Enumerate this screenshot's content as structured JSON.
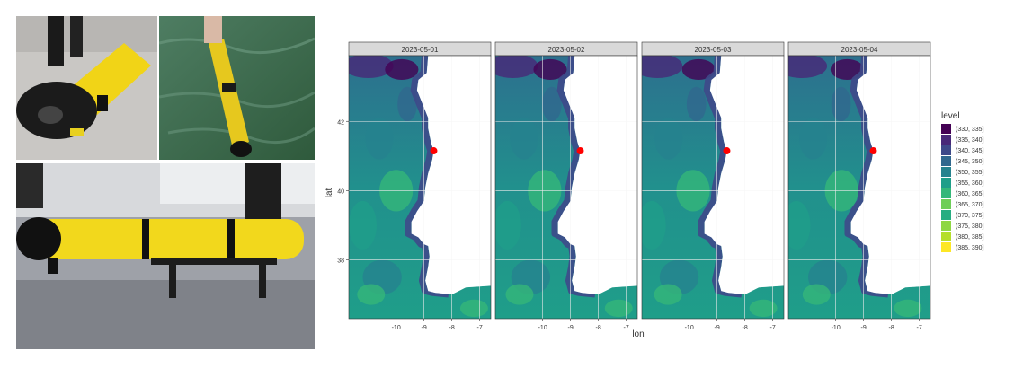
{
  "photos": [
    {
      "name": "glider-on-dock-photo",
      "description_icon": "underwater-glider-nose"
    },
    {
      "name": "glider-in-water-photo",
      "description_icon": "underwater-glider-deploy"
    },
    {
      "name": "glider-on-stand-photo",
      "description_icon": "underwater-glider-stand"
    }
  ],
  "chart_data": {
    "type": "heatmap",
    "facets": [
      "2023-05-01",
      "2023-05-02",
      "2023-05-03",
      "2023-05-04"
    ],
    "xlabel": "lon",
    "ylabel": "lat",
    "xlim": [
      -11.7,
      -6.6
    ],
    "ylim": [
      36.3,
      43.9
    ],
    "xticks": [
      -10,
      -9,
      -8,
      -7
    ],
    "yticks": [
      38,
      40,
      42
    ],
    "grid": true,
    "legend": {
      "title": "level",
      "position": "right",
      "levels": [
        "(330, 335]",
        "(335, 340]",
        "(340, 345]",
        "(345, 350]",
        "(350, 355]",
        "(355, 360]",
        "(360, 365]",
        "(365, 370]",
        "(370, 375]",
        "(375, 380]",
        "(380, 385]",
        "(385, 390]"
      ],
      "colors": [
        "#440154",
        "#482878",
        "#3e4989",
        "#31688e",
        "#26828e",
        "#1f9e89",
        "#35b779",
        "#6ece58",
        "#27ad81",
        "#8fd744",
        "#b5de2b",
        "#fde725"
      ]
    },
    "point": {
      "lon": -8.65,
      "lat": 41.15,
      "color": "#ff0000"
    }
  },
  "colors": {
    "panel_bg": "#ffffff",
    "strip_bg": "#d9d9d9",
    "land": "#ffffff",
    "point": "#ff0000"
  }
}
